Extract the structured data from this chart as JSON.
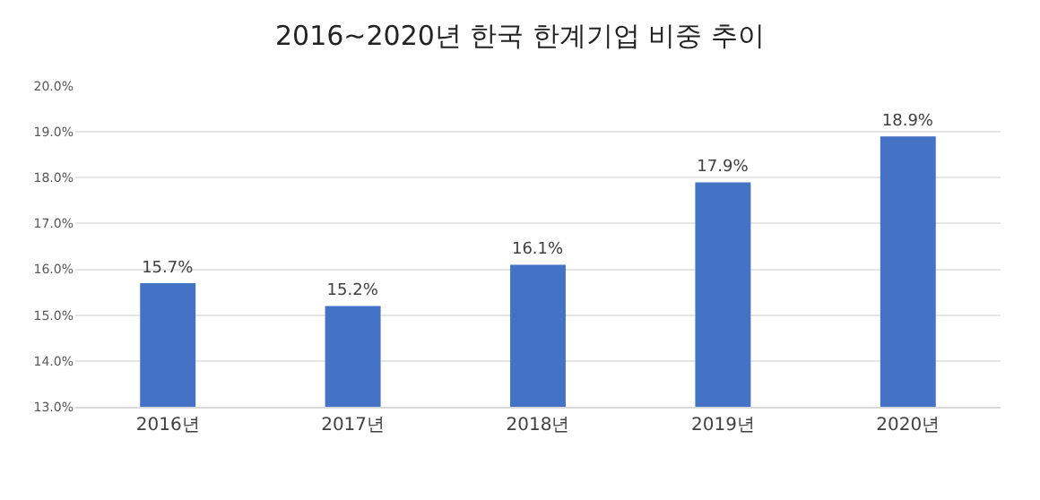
{
  "chart_data": {
    "type": "bar",
    "title": "2016~2020년 한국 한계기업 비중 추이",
    "categories": [
      "2016년",
      "2017년",
      "2018년",
      "2019년",
      "2020년"
    ],
    "values": [
      15.7,
      15.2,
      16.1,
      17.9,
      18.9
    ],
    "value_labels": [
      "15.7%",
      "15.2%",
      "16.1%",
      "17.9%",
      "18.9%"
    ],
    "color": "#4472c4",
    "ylim": [
      13,
      20
    ],
    "yticks": [
      {
        "value": 13,
        "label": "13.0%"
      },
      {
        "value": 14,
        "label": "14.0%"
      },
      {
        "value": 15,
        "label": "15.0%"
      },
      {
        "value": 16,
        "label": "16.0%"
      },
      {
        "value": 17,
        "label": "17.0%"
      },
      {
        "value": 18,
        "label": "18.0%"
      },
      {
        "value": 19,
        "label": "19.0%"
      },
      {
        "value": 20,
        "label": "20.0%"
      }
    ],
    "grid": "y",
    "legend": false
  }
}
